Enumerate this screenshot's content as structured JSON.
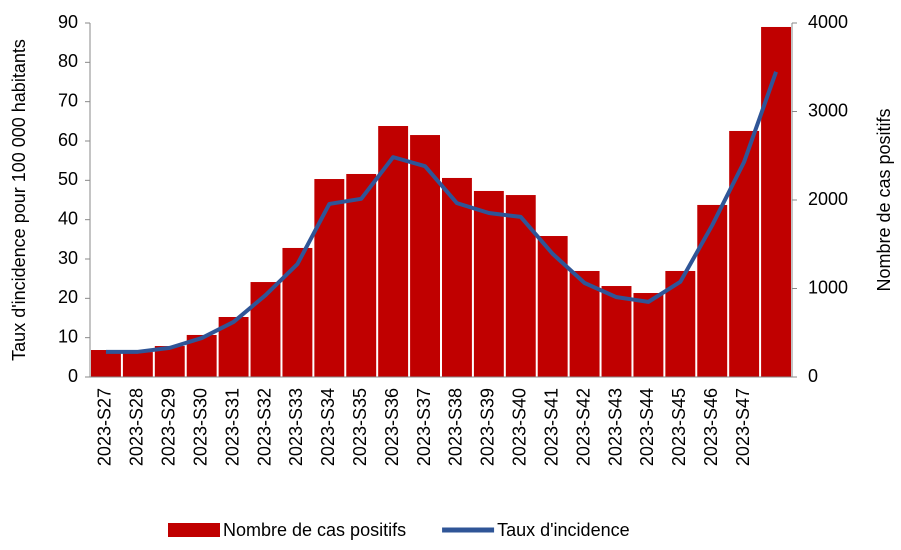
{
  "chart_data": {
    "type": "bar_line",
    "ylabel": "Taux d'incidence pour 100 000 habitants",
    "y2label": "Nombre de cas positifs",
    "categories": [
      "2023-S27",
      "2023-S28",
      "2023-S29",
      "2023-S30",
      "2023-S31",
      "2023-S32",
      "2023-S33",
      "2023-S34",
      "2023-S35",
      "2023-S36",
      "2023-S37",
      "2023-S38",
      "2023-S39",
      "2023-S40",
      "2023-S41",
      "2023-S42",
      "2023-S43",
      "2023-S44",
      "2023-S45",
      "2023-S46",
      "2023-S47",
      null
    ],
    "series": [
      {
        "name": "Nombre de cas positifs",
        "type": "bar",
        "axis": "y2",
        "color": "#c00000",
        "values": [
          305,
          282,
          350,
          475,
          678,
          1073,
          1458,
          2237,
          2294,
          2836,
          2734,
          2249,
          2102,
          2056,
          1593,
          1198,
          1028,
          949,
          1198,
          1944,
          2780,
          3955
        ]
      },
      {
        "name": "Taux d'incidence",
        "type": "line",
        "axis": "y",
        "color": "#2f5597",
        "values": [
          6.4,
          6.4,
          7.4,
          9.9,
          14.0,
          20.8,
          28.7,
          44.0,
          45.3,
          55.9,
          53.6,
          44.2,
          41.7,
          40.7,
          31.3,
          23.9,
          20.3,
          19.1,
          24.2,
          38.6,
          54.7,
          77.6
        ]
      }
    ],
    "ylim": [
      0,
      90
    ],
    "yticks": [
      0,
      10,
      20,
      30,
      40,
      50,
      60,
      70,
      80,
      90
    ],
    "y2lim": [
      0,
      4000
    ],
    "y2ticks": [
      0,
      1000,
      2000,
      3000,
      4000
    ],
    "legend": "bottom"
  }
}
